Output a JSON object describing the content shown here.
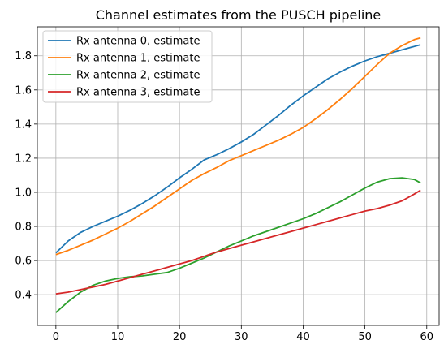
{
  "chart_data": {
    "type": "line",
    "title": "Channel estimates from the PUSCH pipeline",
    "xlabel": "",
    "ylabel": "",
    "xlim": [
      -3,
      62
    ],
    "ylim": [
      0.22,
      1.97
    ],
    "xticks": [
      0,
      10,
      20,
      30,
      40,
      50,
      60
    ],
    "yticks": [
      0.4,
      0.6,
      0.8,
      1.0,
      1.2,
      1.4,
      1.6,
      1.8
    ],
    "ytick_labels": [
      "0.4",
      "0.6",
      "0.8",
      "1.0",
      "1.2",
      "1.4",
      "1.6",
      "1.8"
    ],
    "grid": true,
    "legend_position": "upper-left",
    "x": [
      0,
      2,
      4,
      6,
      8,
      10,
      12,
      14,
      16,
      18,
      20,
      22,
      24,
      26,
      28,
      30,
      32,
      34,
      36,
      38,
      40,
      42,
      44,
      46,
      48,
      50,
      52,
      54,
      56,
      58,
      59
    ],
    "series": [
      {
        "name": "Rx antenna 0, estimate",
        "color": "#1f77b4",
        "values": [
          0.645,
          0.715,
          0.765,
          0.8,
          0.83,
          0.86,
          0.895,
          0.935,
          0.98,
          1.03,
          1.085,
          1.135,
          1.19,
          1.22,
          1.255,
          1.295,
          1.34,
          1.395,
          1.45,
          1.51,
          1.565,
          1.615,
          1.665,
          1.705,
          1.74,
          1.77,
          1.795,
          1.815,
          1.835,
          1.855,
          1.865
        ]
      },
      {
        "name": "Rx antenna 1, estimate",
        "color": "#ff7f0e",
        "values": [
          0.635,
          0.66,
          0.69,
          0.72,
          0.755,
          0.79,
          0.83,
          0.875,
          0.92,
          0.97,
          1.02,
          1.07,
          1.11,
          1.145,
          1.185,
          1.215,
          1.245,
          1.275,
          1.305,
          1.34,
          1.38,
          1.43,
          1.485,
          1.545,
          1.61,
          1.68,
          1.75,
          1.815,
          1.86,
          1.895,
          1.905
        ]
      },
      {
        "name": "Rx antenna 2, estimate",
        "color": "#2ca02c",
        "values": [
          0.295,
          0.36,
          0.415,
          0.455,
          0.48,
          0.495,
          0.505,
          0.51,
          0.52,
          0.53,
          0.555,
          0.585,
          0.615,
          0.65,
          0.685,
          0.715,
          0.745,
          0.77,
          0.795,
          0.82,
          0.845,
          0.875,
          0.91,
          0.945,
          0.985,
          1.025,
          1.06,
          1.08,
          1.085,
          1.075,
          1.055
        ]
      },
      {
        "name": "Rx antenna 3, estimate",
        "color": "#d62728",
        "values": [
          0.405,
          0.415,
          0.43,
          0.445,
          0.46,
          0.48,
          0.5,
          0.52,
          0.54,
          0.56,
          0.58,
          0.6,
          0.625,
          0.65,
          0.67,
          0.69,
          0.71,
          0.73,
          0.75,
          0.77,
          0.79,
          0.81,
          0.83,
          0.85,
          0.87,
          0.89,
          0.905,
          0.925,
          0.95,
          0.99,
          1.012
        ]
      }
    ]
  }
}
